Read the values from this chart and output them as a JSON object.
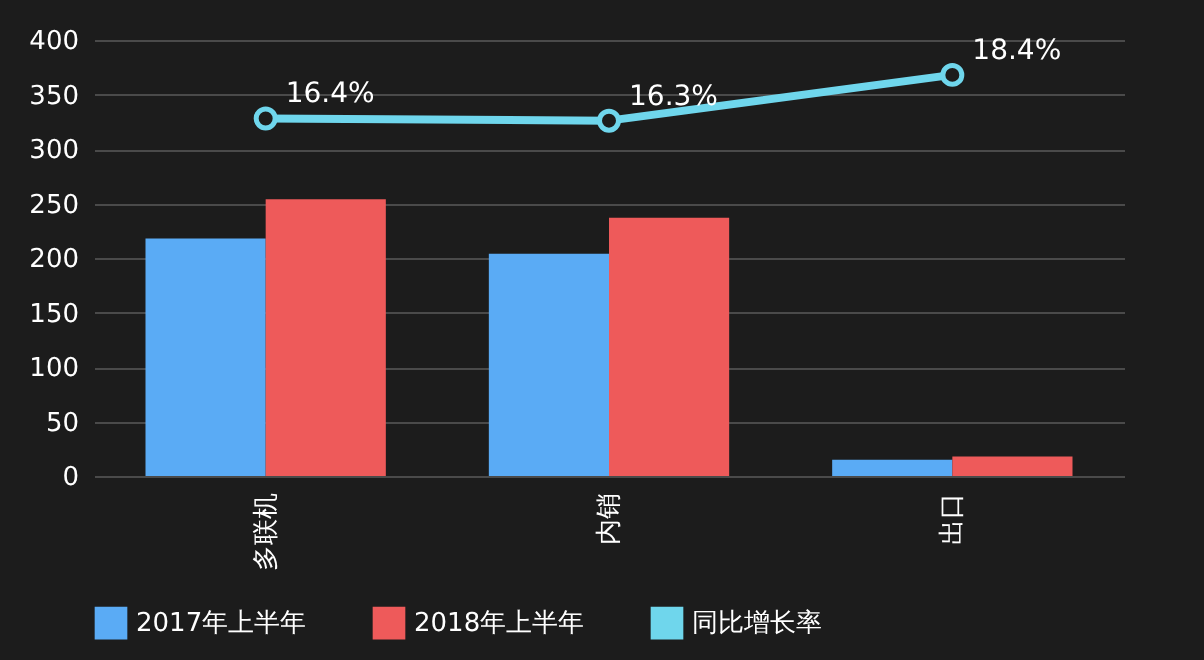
{
  "chart_data": {
    "type": "bar",
    "categories": [
      "多联机",
      "内销",
      "出口"
    ],
    "series": [
      {
        "name": "2017年上半年",
        "color": "#5aabf5",
        "values": [
          218,
          204,
          15
        ]
      },
      {
        "name": "2018年上半年",
        "color": "#ee5a5a",
        "values": [
          254,
          237,
          18
        ]
      },
      {
        "name": "同比增长率",
        "color": "#6fd6ec",
        "type": "line",
        "axis": "y2",
        "marker": "circle",
        "values": [
          16.4,
          16.3,
          18.4
        ],
        "value_labels": [
          "16.4%",
          "16.3%",
          "18.4%"
        ]
      }
    ],
    "ylim": [
      0,
      400
    ],
    "yticks": [
      0,
      50,
      100,
      150,
      200,
      250,
      300,
      350,
      400
    ],
    "y2lim": [
      0,
      20
    ],
    "grid": "y",
    "legend": "bottom"
  }
}
